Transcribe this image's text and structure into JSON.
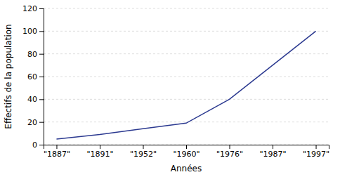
{
  "chart_data": {
    "type": "line",
    "categories": [
      "\"1887\"",
      "\"1891\"",
      "\"1952\"",
      "\"1960\"",
      "\"1976\"",
      "\"1987\"",
      "\"1997\""
    ],
    "values": [
      5,
      9,
      14,
      19,
      40,
      70,
      100
    ],
    "color": "#2b3990",
    "xlabel": "Années",
    "ylabel": "Effectifs de la population",
    "ylim": [
      0,
      120
    ],
    "yticks": [
      0,
      20,
      40,
      60,
      80,
      100,
      120
    ],
    "grid": true
  }
}
